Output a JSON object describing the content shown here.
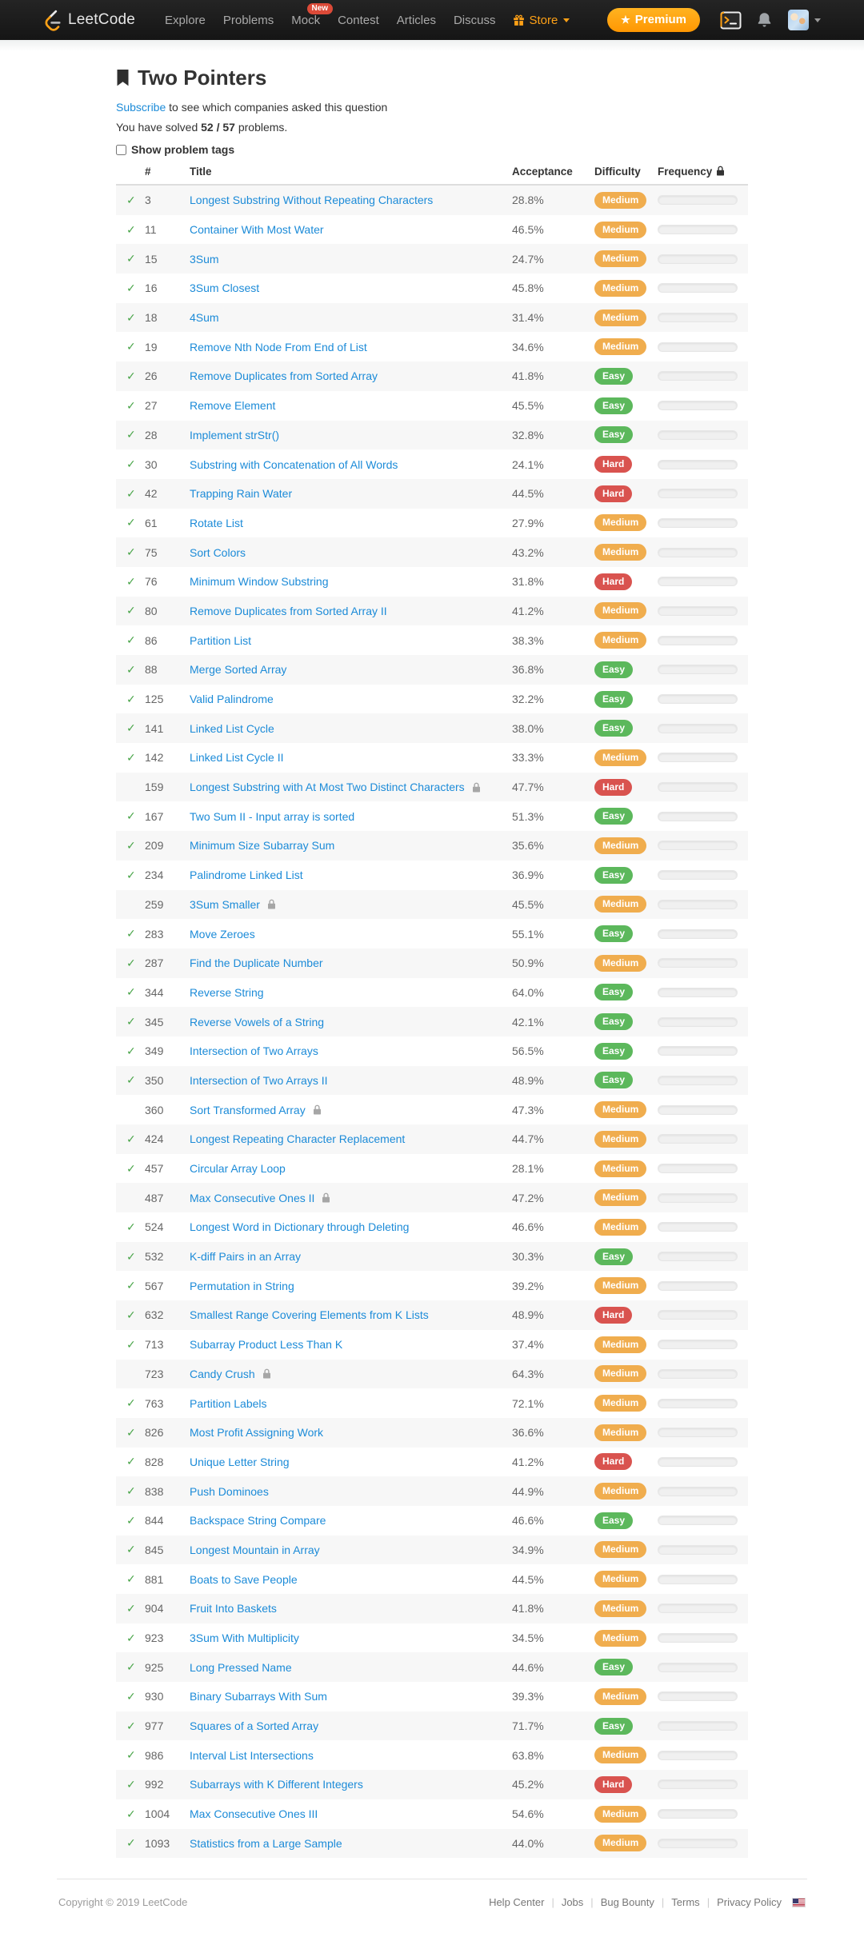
{
  "nav": {
    "brand": "LeetCode",
    "items": [
      {
        "label": "Explore"
      },
      {
        "label": "Problems"
      },
      {
        "label": "Mock",
        "badge": "New"
      },
      {
        "label": "Contest"
      },
      {
        "label": "Articles"
      },
      {
        "label": "Discuss"
      },
      {
        "label": "Store",
        "accent": true,
        "gift_icon": true,
        "caret": true
      }
    ],
    "premium_label": "Premium",
    "premium_star": "★"
  },
  "page": {
    "title": "Two Pointers",
    "subscribe_link": "Subscribe",
    "subscribe_rest": " to see which companies asked this question",
    "solved_prefix": "You have solved ",
    "solved_count": "52 / 57",
    "solved_suffix": " problems.",
    "show_tags_label": "Show problem tags"
  },
  "table": {
    "headers": {
      "num": "#",
      "title": "Title",
      "acceptance": "Acceptance",
      "difficulty": "Difficulty",
      "frequency": "Frequency"
    },
    "rows": [
      {
        "num": "3",
        "title": "Longest Substring Without Repeating Characters",
        "acceptance": "28.8%",
        "difficulty": "Medium",
        "solved": true,
        "locked": false
      },
      {
        "num": "11",
        "title": "Container With Most Water",
        "acceptance": "46.5%",
        "difficulty": "Medium",
        "solved": true,
        "locked": false
      },
      {
        "num": "15",
        "title": "3Sum",
        "acceptance": "24.7%",
        "difficulty": "Medium",
        "solved": true,
        "locked": false
      },
      {
        "num": "16",
        "title": "3Sum Closest",
        "acceptance": "45.8%",
        "difficulty": "Medium",
        "solved": true,
        "locked": false
      },
      {
        "num": "18",
        "title": "4Sum",
        "acceptance": "31.4%",
        "difficulty": "Medium",
        "solved": true,
        "locked": false
      },
      {
        "num": "19",
        "title": "Remove Nth Node From End of List",
        "acceptance": "34.6%",
        "difficulty": "Medium",
        "solved": true,
        "locked": false
      },
      {
        "num": "26",
        "title": "Remove Duplicates from Sorted Array",
        "acceptance": "41.8%",
        "difficulty": "Easy",
        "solved": true,
        "locked": false
      },
      {
        "num": "27",
        "title": "Remove Element",
        "acceptance": "45.5%",
        "difficulty": "Easy",
        "solved": true,
        "locked": false
      },
      {
        "num": "28",
        "title": "Implement strStr()",
        "acceptance": "32.8%",
        "difficulty": "Easy",
        "solved": true,
        "locked": false
      },
      {
        "num": "30",
        "title": "Substring with Concatenation of All Words",
        "acceptance": "24.1%",
        "difficulty": "Hard",
        "solved": true,
        "locked": false
      },
      {
        "num": "42",
        "title": "Trapping Rain Water",
        "acceptance": "44.5%",
        "difficulty": "Hard",
        "solved": true,
        "locked": false
      },
      {
        "num": "61",
        "title": "Rotate List",
        "acceptance": "27.9%",
        "difficulty": "Medium",
        "solved": true,
        "locked": false
      },
      {
        "num": "75",
        "title": "Sort Colors",
        "acceptance": "43.2%",
        "difficulty": "Medium",
        "solved": true,
        "locked": false
      },
      {
        "num": "76",
        "title": "Minimum Window Substring",
        "acceptance": "31.8%",
        "difficulty": "Hard",
        "solved": true,
        "locked": false
      },
      {
        "num": "80",
        "title": "Remove Duplicates from Sorted Array II",
        "acceptance": "41.2%",
        "difficulty": "Medium",
        "solved": true,
        "locked": false
      },
      {
        "num": "86",
        "title": "Partition List",
        "acceptance": "38.3%",
        "difficulty": "Medium",
        "solved": true,
        "locked": false
      },
      {
        "num": "88",
        "title": "Merge Sorted Array",
        "acceptance": "36.8%",
        "difficulty": "Easy",
        "solved": true,
        "locked": false
      },
      {
        "num": "125",
        "title": "Valid Palindrome",
        "acceptance": "32.2%",
        "difficulty": "Easy",
        "solved": true,
        "locked": false
      },
      {
        "num": "141",
        "title": "Linked List Cycle",
        "acceptance": "38.0%",
        "difficulty": "Easy",
        "solved": true,
        "locked": false
      },
      {
        "num": "142",
        "title": "Linked List Cycle II",
        "acceptance": "33.3%",
        "difficulty": "Medium",
        "solved": true,
        "locked": false
      },
      {
        "num": "159",
        "title": "Longest Substring with At Most Two Distinct Characters",
        "acceptance": "47.7%",
        "difficulty": "Hard",
        "solved": false,
        "locked": true
      },
      {
        "num": "167",
        "title": "Two Sum II - Input array is sorted",
        "acceptance": "51.3%",
        "difficulty": "Easy",
        "solved": true,
        "locked": false
      },
      {
        "num": "209",
        "title": "Minimum Size Subarray Sum",
        "acceptance": "35.6%",
        "difficulty": "Medium",
        "solved": true,
        "locked": false
      },
      {
        "num": "234",
        "title": "Palindrome Linked List",
        "acceptance": "36.9%",
        "difficulty": "Easy",
        "solved": true,
        "locked": false
      },
      {
        "num": "259",
        "title": "3Sum Smaller",
        "acceptance": "45.5%",
        "difficulty": "Medium",
        "solved": false,
        "locked": true
      },
      {
        "num": "283",
        "title": "Move Zeroes",
        "acceptance": "55.1%",
        "difficulty": "Easy",
        "solved": true,
        "locked": false
      },
      {
        "num": "287",
        "title": "Find the Duplicate Number",
        "acceptance": "50.9%",
        "difficulty": "Medium",
        "solved": true,
        "locked": false
      },
      {
        "num": "344",
        "title": "Reverse String",
        "acceptance": "64.0%",
        "difficulty": "Easy",
        "solved": true,
        "locked": false
      },
      {
        "num": "345",
        "title": "Reverse Vowels of a String",
        "acceptance": "42.1%",
        "difficulty": "Easy",
        "solved": true,
        "locked": false
      },
      {
        "num": "349",
        "title": "Intersection of Two Arrays",
        "acceptance": "56.5%",
        "difficulty": "Easy",
        "solved": true,
        "locked": false
      },
      {
        "num": "350",
        "title": "Intersection of Two Arrays II",
        "acceptance": "48.9%",
        "difficulty": "Easy",
        "solved": true,
        "locked": false
      },
      {
        "num": "360",
        "title": "Sort Transformed Array",
        "acceptance": "47.3%",
        "difficulty": "Medium",
        "solved": false,
        "locked": true
      },
      {
        "num": "424",
        "title": "Longest Repeating Character Replacement",
        "acceptance": "44.7%",
        "difficulty": "Medium",
        "solved": true,
        "locked": false
      },
      {
        "num": "457",
        "title": "Circular Array Loop",
        "acceptance": "28.1%",
        "difficulty": "Medium",
        "solved": true,
        "locked": false
      },
      {
        "num": "487",
        "title": "Max Consecutive Ones II",
        "acceptance": "47.2%",
        "difficulty": "Medium",
        "solved": false,
        "locked": true
      },
      {
        "num": "524",
        "title": "Longest Word in Dictionary through Deleting",
        "acceptance": "46.6%",
        "difficulty": "Medium",
        "solved": true,
        "locked": false
      },
      {
        "num": "532",
        "title": "K-diff Pairs in an Array",
        "acceptance": "30.3%",
        "difficulty": "Easy",
        "solved": true,
        "locked": false
      },
      {
        "num": "567",
        "title": "Permutation in String",
        "acceptance": "39.2%",
        "difficulty": "Medium",
        "solved": true,
        "locked": false
      },
      {
        "num": "632",
        "title": "Smallest Range Covering Elements from K Lists",
        "acceptance": "48.9%",
        "difficulty": "Hard",
        "solved": true,
        "locked": false
      },
      {
        "num": "713",
        "title": "Subarray Product Less Than K",
        "acceptance": "37.4%",
        "difficulty": "Medium",
        "solved": true,
        "locked": false
      },
      {
        "num": "723",
        "title": "Candy Crush",
        "acceptance": "64.3%",
        "difficulty": "Medium",
        "solved": false,
        "locked": true
      },
      {
        "num": "763",
        "title": "Partition Labels",
        "acceptance": "72.1%",
        "difficulty": "Medium",
        "solved": true,
        "locked": false
      },
      {
        "num": "826",
        "title": "Most Profit Assigning Work",
        "acceptance": "36.6%",
        "difficulty": "Medium",
        "solved": true,
        "locked": false
      },
      {
        "num": "828",
        "title": "Unique Letter String",
        "acceptance": "41.2%",
        "difficulty": "Hard",
        "solved": true,
        "locked": false
      },
      {
        "num": "838",
        "title": "Push Dominoes",
        "acceptance": "44.9%",
        "difficulty": "Medium",
        "solved": true,
        "locked": false
      },
      {
        "num": "844",
        "title": "Backspace String Compare",
        "acceptance": "46.6%",
        "difficulty": "Easy",
        "solved": true,
        "locked": false
      },
      {
        "num": "845",
        "title": "Longest Mountain in Array",
        "acceptance": "34.9%",
        "difficulty": "Medium",
        "solved": true,
        "locked": false
      },
      {
        "num": "881",
        "title": "Boats to Save People",
        "acceptance": "44.5%",
        "difficulty": "Medium",
        "solved": true,
        "locked": false
      },
      {
        "num": "904",
        "title": "Fruit Into Baskets",
        "acceptance": "41.8%",
        "difficulty": "Medium",
        "solved": true,
        "locked": false
      },
      {
        "num": "923",
        "title": "3Sum With Multiplicity",
        "acceptance": "34.5%",
        "difficulty": "Medium",
        "solved": true,
        "locked": false
      },
      {
        "num": "925",
        "title": "Long Pressed Name",
        "acceptance": "44.6%",
        "difficulty": "Easy",
        "solved": true,
        "locked": false
      },
      {
        "num": "930",
        "title": "Binary Subarrays With Sum",
        "acceptance": "39.3%",
        "difficulty": "Medium",
        "solved": true,
        "locked": false
      },
      {
        "num": "977",
        "title": "Squares of a Sorted Array",
        "acceptance": "71.7%",
        "difficulty": "Easy",
        "solved": true,
        "locked": false
      },
      {
        "num": "986",
        "title": "Interval List Intersections",
        "acceptance": "63.8%",
        "difficulty": "Medium",
        "solved": true,
        "locked": false
      },
      {
        "num": "992",
        "title": "Subarrays with K Different Integers",
        "acceptance": "45.2%",
        "difficulty": "Hard",
        "solved": true,
        "locked": false
      },
      {
        "num": "1004",
        "title": "Max Consecutive Ones III",
        "acceptance": "54.6%",
        "difficulty": "Medium",
        "solved": true,
        "locked": false
      },
      {
        "num": "1093",
        "title": "Statistics from a Large Sample",
        "acceptance": "44.0%",
        "difficulty": "Medium",
        "solved": true,
        "locked": false
      }
    ]
  },
  "footer": {
    "copyright": "Copyright © 2019 LeetCode",
    "links": [
      "Help Center",
      "Jobs",
      "Bug Bounty",
      "Terms",
      "Privacy Policy"
    ]
  },
  "colors": {
    "easy": "#5cb85c",
    "medium": "#f0ad4e",
    "hard": "#d9534f",
    "link": "#1c8bd8",
    "accent_orange": "#ffa116",
    "nav_bg": "#1d1d1d"
  },
  "icons": {
    "check": "✓",
    "solved_check": "green-check-icon",
    "locked": "lock-icon",
    "frequency_header": "lock-icon",
    "store": "gift-icon",
    "navbar_right": [
      "terminal-icon",
      "bell-icon",
      "avatar"
    ]
  }
}
